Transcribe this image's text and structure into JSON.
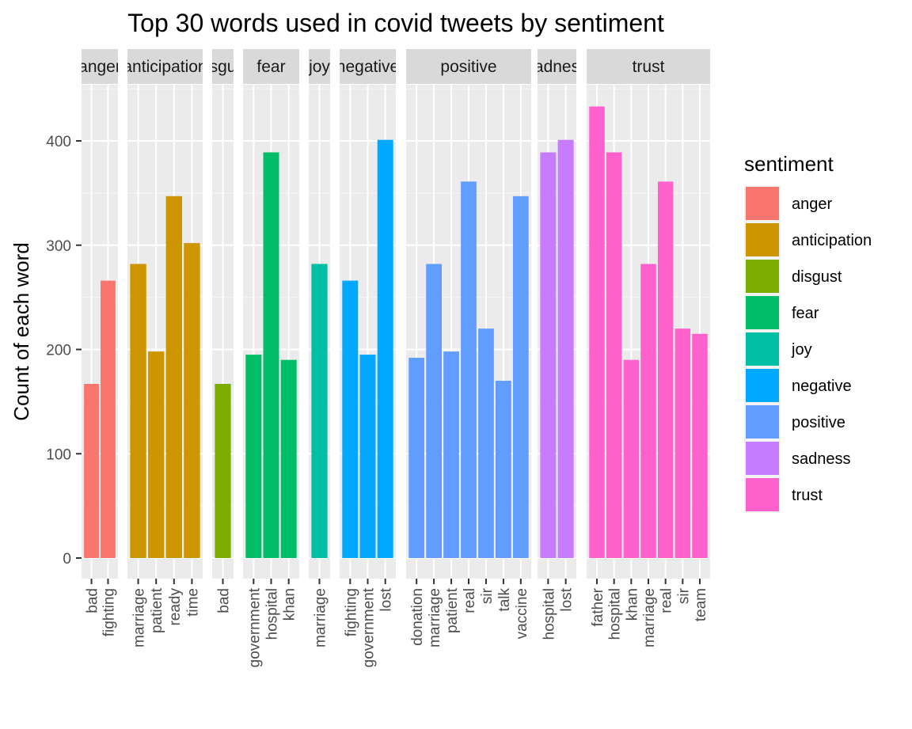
{
  "chart_data": {
    "type": "bar",
    "title": "Top 30 words used in covid tweets by sentiment",
    "ylabel": "Count of each word",
    "xlabel": "",
    "ylim": [
      -18,
      455
    ],
    "y_ticks": [
      0,
      100,
      200,
      300,
      400
    ],
    "grid": true,
    "legend": {
      "title": "sentiment",
      "placement": "right",
      "entries": [
        "anger",
        "anticipation",
        "disgust",
        "fear",
        "joy",
        "negative",
        "positive",
        "sadness",
        "trust"
      ]
    },
    "colors": {
      "anger": "#F8766D",
      "anticipation": "#CD9600",
      "disgust": "#7CAE00",
      "fear": "#00BE67",
      "joy": "#00BFA4",
      "negative": "#00A9FF",
      "positive": "#619CFF",
      "sadness": "#C77CFF",
      "trust": "#FF61CC"
    },
    "facets": [
      {
        "name": "anger",
        "strip_label": "anger",
        "words": [
          {
            "word": "bad",
            "count": 167
          },
          {
            "word": "fighting",
            "count": 266
          }
        ]
      },
      {
        "name": "anticipation",
        "strip_label": "anticipation",
        "words": [
          {
            "word": "marriage",
            "count": 282
          },
          {
            "word": "patient",
            "count": 198
          },
          {
            "word": "ready",
            "count": 347
          },
          {
            "word": "time",
            "count": 302
          }
        ]
      },
      {
        "name": "disgust",
        "strip_label": "disgust",
        "words": [
          {
            "word": "bad",
            "count": 167
          }
        ]
      },
      {
        "name": "fear",
        "strip_label": "fear",
        "words": [
          {
            "word": "government",
            "count": 195
          },
          {
            "word": "hospital",
            "count": 389
          },
          {
            "word": "khan",
            "count": 190
          }
        ]
      },
      {
        "name": "joy",
        "strip_label": "joy",
        "words": [
          {
            "word": "marriage",
            "count": 282
          }
        ]
      },
      {
        "name": "negative",
        "strip_label": "negative",
        "words": [
          {
            "word": "fighting",
            "count": 266
          },
          {
            "word": "government",
            "count": 195
          },
          {
            "word": "lost",
            "count": 401
          }
        ]
      },
      {
        "name": "positive",
        "strip_label": "positive",
        "words": [
          {
            "word": "donation",
            "count": 192
          },
          {
            "word": "marriage",
            "count": 282
          },
          {
            "word": "patient",
            "count": 198
          },
          {
            "word": "real",
            "count": 361
          },
          {
            "word": "sir",
            "count": 220
          },
          {
            "word": "talk",
            "count": 170
          },
          {
            "word": "vaccine",
            "count": 347
          }
        ]
      },
      {
        "name": "sadness",
        "strip_label": "sadness",
        "words": [
          {
            "word": "hospital",
            "count": 389
          },
          {
            "word": "lost",
            "count": 401
          }
        ]
      },
      {
        "name": "trust",
        "strip_label": "trust",
        "words": [
          {
            "word": "father",
            "count": 433
          },
          {
            "word": "hospital",
            "count": 389
          },
          {
            "word": "khan",
            "count": 190
          },
          {
            "word": "marriage",
            "count": 282
          },
          {
            "word": "real",
            "count": 361
          },
          {
            "word": "sir",
            "count": 220
          },
          {
            "word": "team",
            "count": 215
          }
        ]
      }
    ]
  }
}
